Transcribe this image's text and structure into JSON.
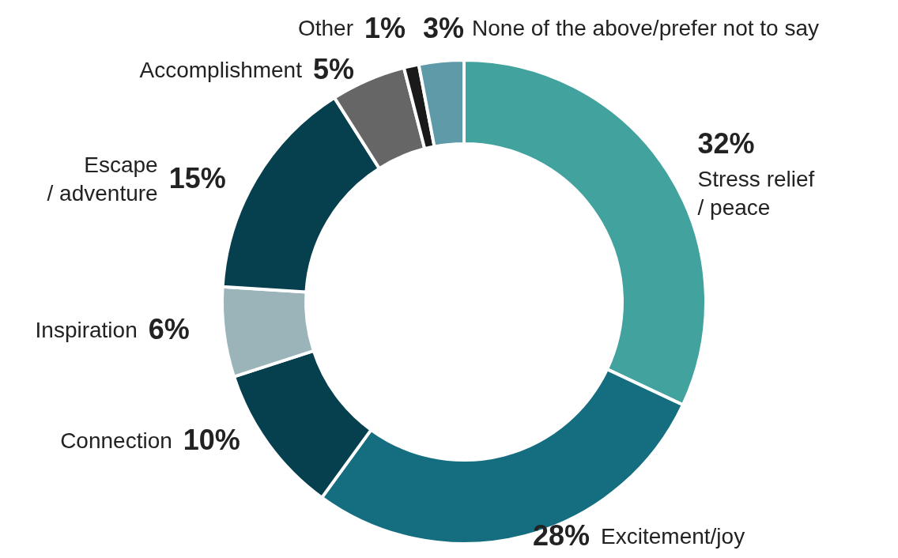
{
  "chart_data": {
    "type": "donut",
    "categories": [
      "Stress relief / peace",
      "Excitement/joy",
      "Connection",
      "Inspiration",
      "Escape / adventure",
      "Accomplishment",
      "Other",
      "None of the above/prefer not to say"
    ],
    "values": [
      32,
      28,
      10,
      6,
      15,
      5,
      1,
      3
    ],
    "value_labels": [
      "32%",
      "28%",
      "10%",
      "6%",
      "15%",
      "5%",
      "1%",
      "3%"
    ],
    "colors": [
      "#41a29e",
      "#156e80",
      "#063f4e",
      "#9ab4ba",
      "#063f4e",
      "#666666",
      "#1a1a1a",
      "#5f9aa8"
    ]
  }
}
